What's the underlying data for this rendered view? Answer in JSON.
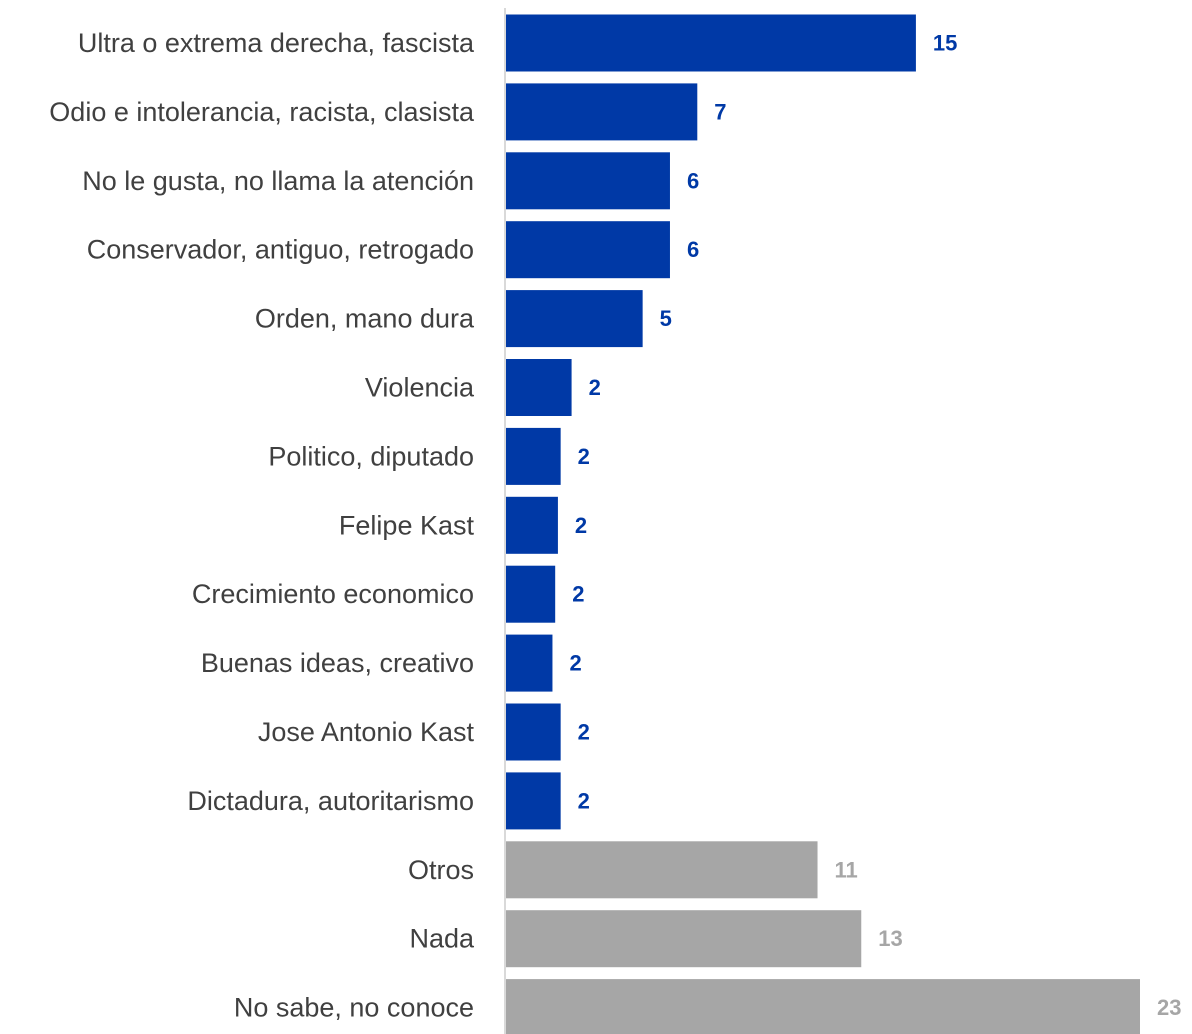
{
  "chart_data": {
    "type": "bar",
    "orientation": "horizontal",
    "categories": [
      "Ultra o extrema derecha, fascista",
      "Odio e intolerancia, racista, clasista",
      "No le gusta, no llama la atención",
      "Conservador, antiguo, retrogado",
      "Orden, mano dura",
      "Violencia",
      "Politico, diputado",
      "Felipe Kast",
      "Crecimiento economico",
      "Buenas ideas, creativo",
      "Jose Antonio Kast",
      "Dictadura, autoritarismo",
      "Otros",
      "Nada",
      "No sabe, no conoce"
    ],
    "values": [
      15,
      7,
      6,
      6,
      5,
      2,
      2,
      2,
      2,
      2,
      2,
      2,
      11,
      13,
      23
    ],
    "bar_values": [
      15,
      7,
      6,
      6,
      5,
      2.4,
      2,
      1.9,
      1.8,
      1.7,
      2,
      2,
      11.4,
      13,
      23.2
    ],
    "labels": [
      "15",
      "7",
      "6",
      "6",
      "5",
      "2",
      "2",
      "2",
      "2",
      "2",
      "2",
      "2",
      "11",
      "13",
      "23"
    ],
    "groups": [
      "main",
      "main",
      "main",
      "main",
      "main",
      "main",
      "main",
      "main",
      "main",
      "main",
      "main",
      "main",
      "other",
      "other",
      "other"
    ],
    "colors": {
      "main": "#0039A6",
      "other": "#A6A6A6",
      "axis": "#D9D9D9",
      "text": "#404040"
    },
    "xlim": [
      0,
      23.2
    ],
    "grid": false,
    "legend": "none"
  }
}
